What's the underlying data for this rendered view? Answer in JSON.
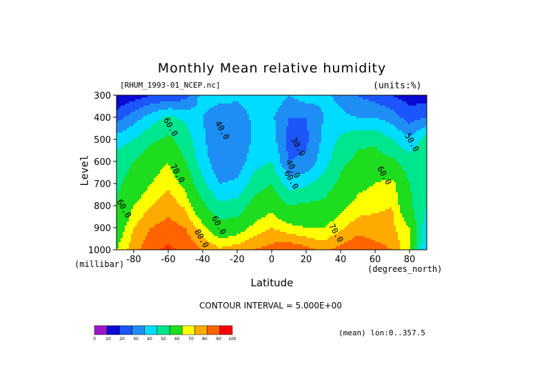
{
  "title": "Monthly Mean relative humidity",
  "source_label": "[RHUM_1993-01_NCEP.nc]",
  "units_label": "(units:%)",
  "contour_interval": "CONTOUR INTERVAL = 5.000E+00",
  "mean_note": "(mean) lon:0..357.5",
  "chart_data": {
    "type": "heatmap",
    "title": "Monthly Mean relative humidity",
    "xlabel": "Latitude",
    "ylabel": "Level",
    "x_unit": "(degrees_north)",
    "y_unit": "(millibar)",
    "xlim": [
      -90,
      90
    ],
    "ylim": [
      1000,
      300
    ],
    "x_ticks": [
      -80,
      -60,
      -40,
      -20,
      0,
      20,
      40,
      60,
      80
    ],
    "x_tick_labels": [
      "-80",
      "-60",
      "-40",
      "-20",
      "0",
      "20",
      "40",
      "60",
      "80"
    ],
    "y_ticks": [
      300,
      400,
      500,
      600,
      700,
      800,
      900,
      1000
    ],
    "y_tick_labels": [
      "300",
      "400",
      "500",
      "600",
      "700",
      "800",
      "900",
      "1000"
    ],
    "latitudes": [
      -90,
      -80,
      -70,
      -60,
      -50,
      -40,
      -30,
      -20,
      -10,
      0,
      10,
      20,
      30,
      40,
      50,
      60,
      70,
      80,
      90
    ],
    "levels": [
      300,
      400,
      500,
      600,
      700,
      800,
      900,
      1000
    ],
    "values": [
      [
        10,
        15,
        20,
        22,
        25,
        45,
        45,
        42,
        45,
        48,
        40,
        45,
        42,
        38,
        30,
        25,
        20,
        15,
        15
      ],
      [
        25,
        35,
        45,
        52,
        48,
        40,
        32,
        35,
        42,
        42,
        30,
        30,
        40,
        42,
        40,
        40,
        35,
        25,
        30
      ],
      [
        45,
        50,
        58,
        62,
        55,
        42,
        30,
        30,
        42,
        45,
        26,
        28,
        42,
        52,
        58,
        58,
        50,
        42,
        55
      ],
      [
        55,
        60,
        66,
        70,
        60,
        45,
        32,
        34,
        46,
        50,
        30,
        32,
        45,
        58,
        62,
        64,
        62,
        55,
        58
      ],
      [
        58,
        64,
        70,
        74,
        68,
        52,
        40,
        42,
        55,
        60,
        45,
        48,
        55,
        62,
        68,
        70,
        72,
        60,
        55
      ],
      [
        60,
        70,
        75,
        78,
        74,
        62,
        52,
        54,
        64,
        68,
        60,
        62,
        62,
        68,
        72,
        74,
        75,
        62,
        50
      ],
      [
        65,
        75,
        80,
        82,
        80,
        72,
        64,
        66,
        72,
        75,
        72,
        70,
        70,
        74,
        78,
        77,
        76,
        70,
        45
      ],
      [
        70,
        78,
        84,
        86,
        84,
        80,
        76,
        78,
        80,
        82,
        84,
        82,
        78,
        82,
        84,
        82,
        80,
        70,
        40
      ]
    ],
    "contour_labels": [
      {
        "text": "60.0",
        "x": -60,
        "y": 450
      },
      {
        "text": "40.0",
        "x": -30,
        "y": 465
      },
      {
        "text": "30.0",
        "x": 14,
        "y": 540
      },
      {
        "text": "40.0",
        "x": 11,
        "y": 640
      },
      {
        "text": "60.0",
        "x": 10,
        "y": 690
      },
      {
        "text": "50.0",
        "x": 80,
        "y": 520
      },
      {
        "text": "60.0",
        "x": 64,
        "y": 670
      },
      {
        "text": "70.0",
        "x": -56,
        "y": 660
      },
      {
        "text": "60.0",
        "x": -87,
        "y": 820
      },
      {
        "text": "60.0",
        "x": -32,
        "y": 895
      },
      {
        "text": "70.0",
        "x": 36,
        "y": 930
      },
      {
        "text": "80.0",
        "x": -42,
        "y": 955
      }
    ],
    "colorbar": {
      "levels": [
        0,
        10,
        20,
        30,
        40,
        50,
        60,
        70,
        80,
        90,
        100
      ],
      "labels": [
        "0",
        "10",
        "20",
        "30",
        "40",
        "50",
        "60",
        "70",
        "80",
        "90",
        "100"
      ],
      "colors": [
        "#9d16c8",
        "#0a0ad2",
        "#1c55fa",
        "#1e8ef5",
        "#00dcff",
        "#00e68e",
        "#1edc1e",
        "#ffff00",
        "#ffaa00",
        "#ff6400",
        "#ff0000"
      ]
    },
    "band_colors": [
      {
        "min": 0,
        "color": "#0a0ad2"
      },
      {
        "min": 20,
        "color": "#1c55fa"
      },
      {
        "min": 30,
        "color": "#1e8ef5"
      },
      {
        "min": 40,
        "color": "#00dcff"
      },
      {
        "min": 50,
        "color": "#00e68e"
      },
      {
        "min": 60,
        "color": "#1edc1e"
      },
      {
        "min": 70,
        "color": "#ffff00"
      },
      {
        "min": 75,
        "color": "#ffaa00"
      },
      {
        "min": 80,
        "color": "#ff6400"
      },
      {
        "min": 85,
        "color": "#ff3300"
      }
    ]
  }
}
